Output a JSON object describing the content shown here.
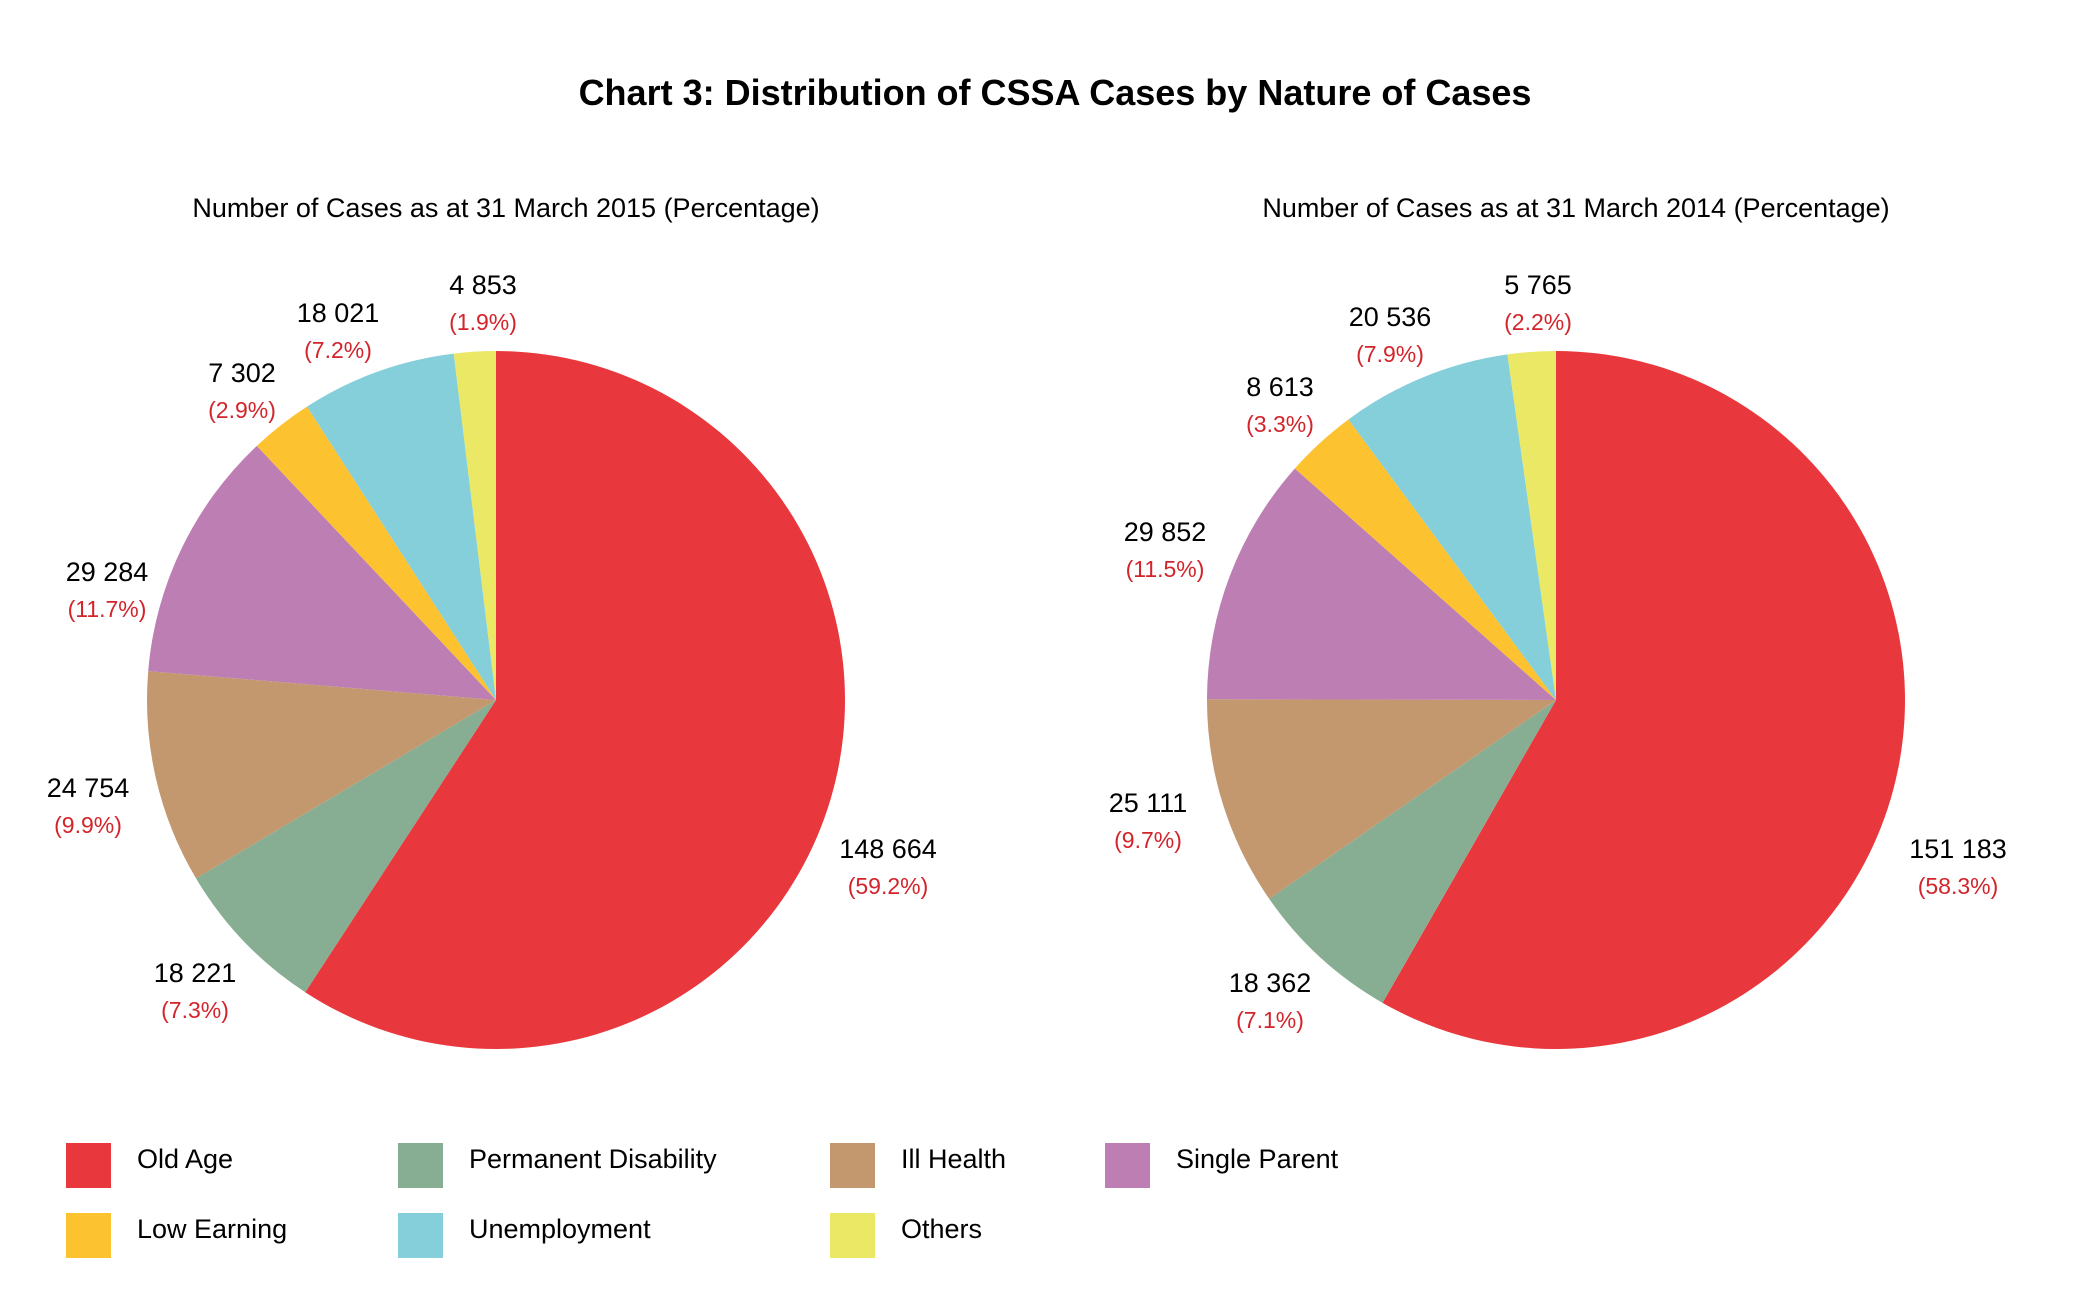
{
  "chart_data": {
    "type": "pie",
    "title": "Chart 3: Distribution of CSSA Cases by Nature of Cases",
    "categories": [
      "Old Age",
      "Permanent Disability",
      "Ill Health",
      "Single Parent",
      "Low Earning",
      "Unemployment",
      "Others"
    ],
    "colors": [
      "#e8383d",
      "#87ae92",
      "#c3986f",
      "#bc7eb3",
      "#fcc22f",
      "#85cfda",
      "#eae865"
    ],
    "pies": [
      {
        "subtitle": "Number of Cases as at 31 March 2015 (Percentage)",
        "values": [
          148664,
          18221,
          24754,
          29284,
          7302,
          18021,
          4853
        ],
        "value_labels": [
          "148 664",
          "18 221",
          "24 754",
          "29 284",
          "7 302",
          "18 021",
          "4 853"
        ],
        "percent_labels": [
          "(59.2%)",
          "(7.3%)",
          "(9.9%)",
          "(11.7%)",
          "(2.9%)",
          "(7.2%)",
          "(1.9%)"
        ],
        "percentages": [
          59.2,
          7.3,
          9.9,
          11.7,
          2.9,
          7.2,
          1.9
        ]
      },
      {
        "subtitle": "Number of Cases as at 31 March 2014 (Percentage)",
        "values": [
          151183,
          18362,
          25111,
          29852,
          8613,
          20536,
          5765
        ],
        "value_labels": [
          "151 183",
          "18 362",
          "25 111",
          "29 852",
          "8 613",
          "20 536",
          "5 765"
        ],
        "percent_labels": [
          "(58.3%)",
          "(7.1%)",
          "(9.7%)",
          "(11.5%)",
          "(3.3%)",
          "(7.9%)",
          "(2.2%)"
        ],
        "percentages": [
          58.3,
          7.1,
          9.7,
          11.5,
          3.3,
          7.9,
          2.2
        ]
      }
    ],
    "start_angle": "12 o'clock",
    "direction": "clockwise",
    "legend_placement": "bottom-left"
  },
  "legend": [
    {
      "label": "Old Age",
      "color": "#e8383d"
    },
    {
      "label": "Permanent Disability",
      "color": "#87ae92"
    },
    {
      "label": "Ill Health",
      "color": "#c3986f"
    },
    {
      "label": "Single Parent",
      "color": "#bc7eb3"
    },
    {
      "label": "Low Earning",
      "color": "#fcc22f"
    },
    {
      "label": "Unemployment",
      "color": "#85cfda"
    },
    {
      "label": "Others",
      "color": "#eae865"
    }
  ]
}
